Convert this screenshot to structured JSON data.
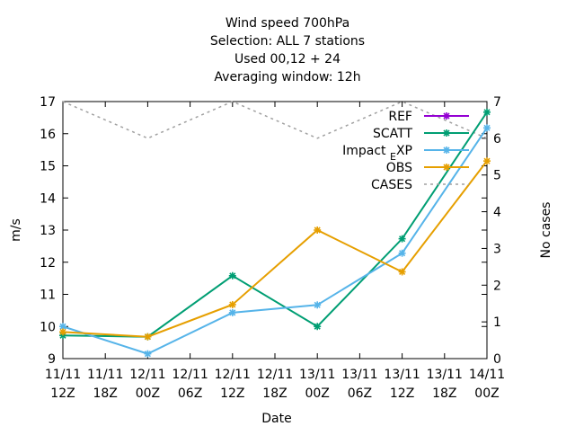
{
  "chart_data": {
    "type": "line",
    "title_lines": [
      "Wind speed 700hPa",
      "Selection: ALL      7 stations",
      "Used  00,12  + 24",
      "Averaging window: 12h"
    ],
    "xlabel": "Date",
    "ylabel": "m/s",
    "y2label": "No cases",
    "x_categories": [
      [
        "11/11",
        "12Z"
      ],
      [
        "11/11",
        "18Z"
      ],
      [
        "12/11",
        "00Z"
      ],
      [
        "12/11",
        "06Z"
      ],
      [
        "12/11",
        "12Z"
      ],
      [
        "12/11",
        "18Z"
      ],
      [
        "13/11",
        "00Z"
      ],
      [
        "13/11",
        "06Z"
      ],
      [
        "13/11",
        "12Z"
      ],
      [
        "13/11",
        "18Z"
      ],
      [
        "14/11",
        "00Z"
      ]
    ],
    "ylim": [
      9,
      17
    ],
    "yticks": [
      9,
      10,
      11,
      12,
      13,
      14,
      15,
      16,
      17
    ],
    "y2lim": [
      0,
      7
    ],
    "y2ticks": [
      0,
      1,
      2,
      3,
      4,
      5,
      6,
      7
    ],
    "legend_position": "top-right",
    "series": [
      {
        "name": "REF",
        "color": "#9400d3",
        "axis": "y",
        "style": "solid",
        "marker": true,
        "x": [],
        "values": []
      },
      {
        "name": "SCATT",
        "color": "#009e73",
        "axis": "y",
        "style": "solid",
        "marker": true,
        "x": [
          0,
          2,
          4,
          6,
          8,
          10
        ],
        "values": [
          9.72,
          9.68,
          11.58,
          10.0,
          12.73,
          16.67
        ]
      },
      {
        "name": "Impact_EXP",
        "color": "#56b4e9",
        "axis": "y",
        "style": "solid",
        "marker": true,
        "x": [
          0,
          2,
          4,
          6,
          8,
          10
        ],
        "values": [
          10.0,
          9.15,
          10.43,
          10.67,
          12.28,
          16.18
        ]
      },
      {
        "name": "OBS",
        "color": "#e69f00",
        "axis": "y",
        "style": "solid",
        "marker": true,
        "x": [
          0,
          2,
          4,
          6,
          8,
          10
        ],
        "values": [
          9.83,
          9.68,
          10.68,
          13.0,
          11.7,
          15.15
        ]
      },
      {
        "name": "CASES",
        "color": "#a0a0a0",
        "axis": "y2",
        "style": "dashed",
        "marker": false,
        "x": [
          0,
          2,
          4,
          6,
          8,
          10
        ],
        "values": [
          7,
          6,
          7,
          6,
          7,
          6
        ]
      }
    ],
    "legend_labels": {
      "REF": "REF",
      "SCATT": "SCATT",
      "Impact_EXP_main": "Impact",
      "Impact_EXP_sub": "E",
      "Impact_EXP_tail": "XP",
      "OBS": "OBS",
      "CASES": "CASES"
    }
  }
}
